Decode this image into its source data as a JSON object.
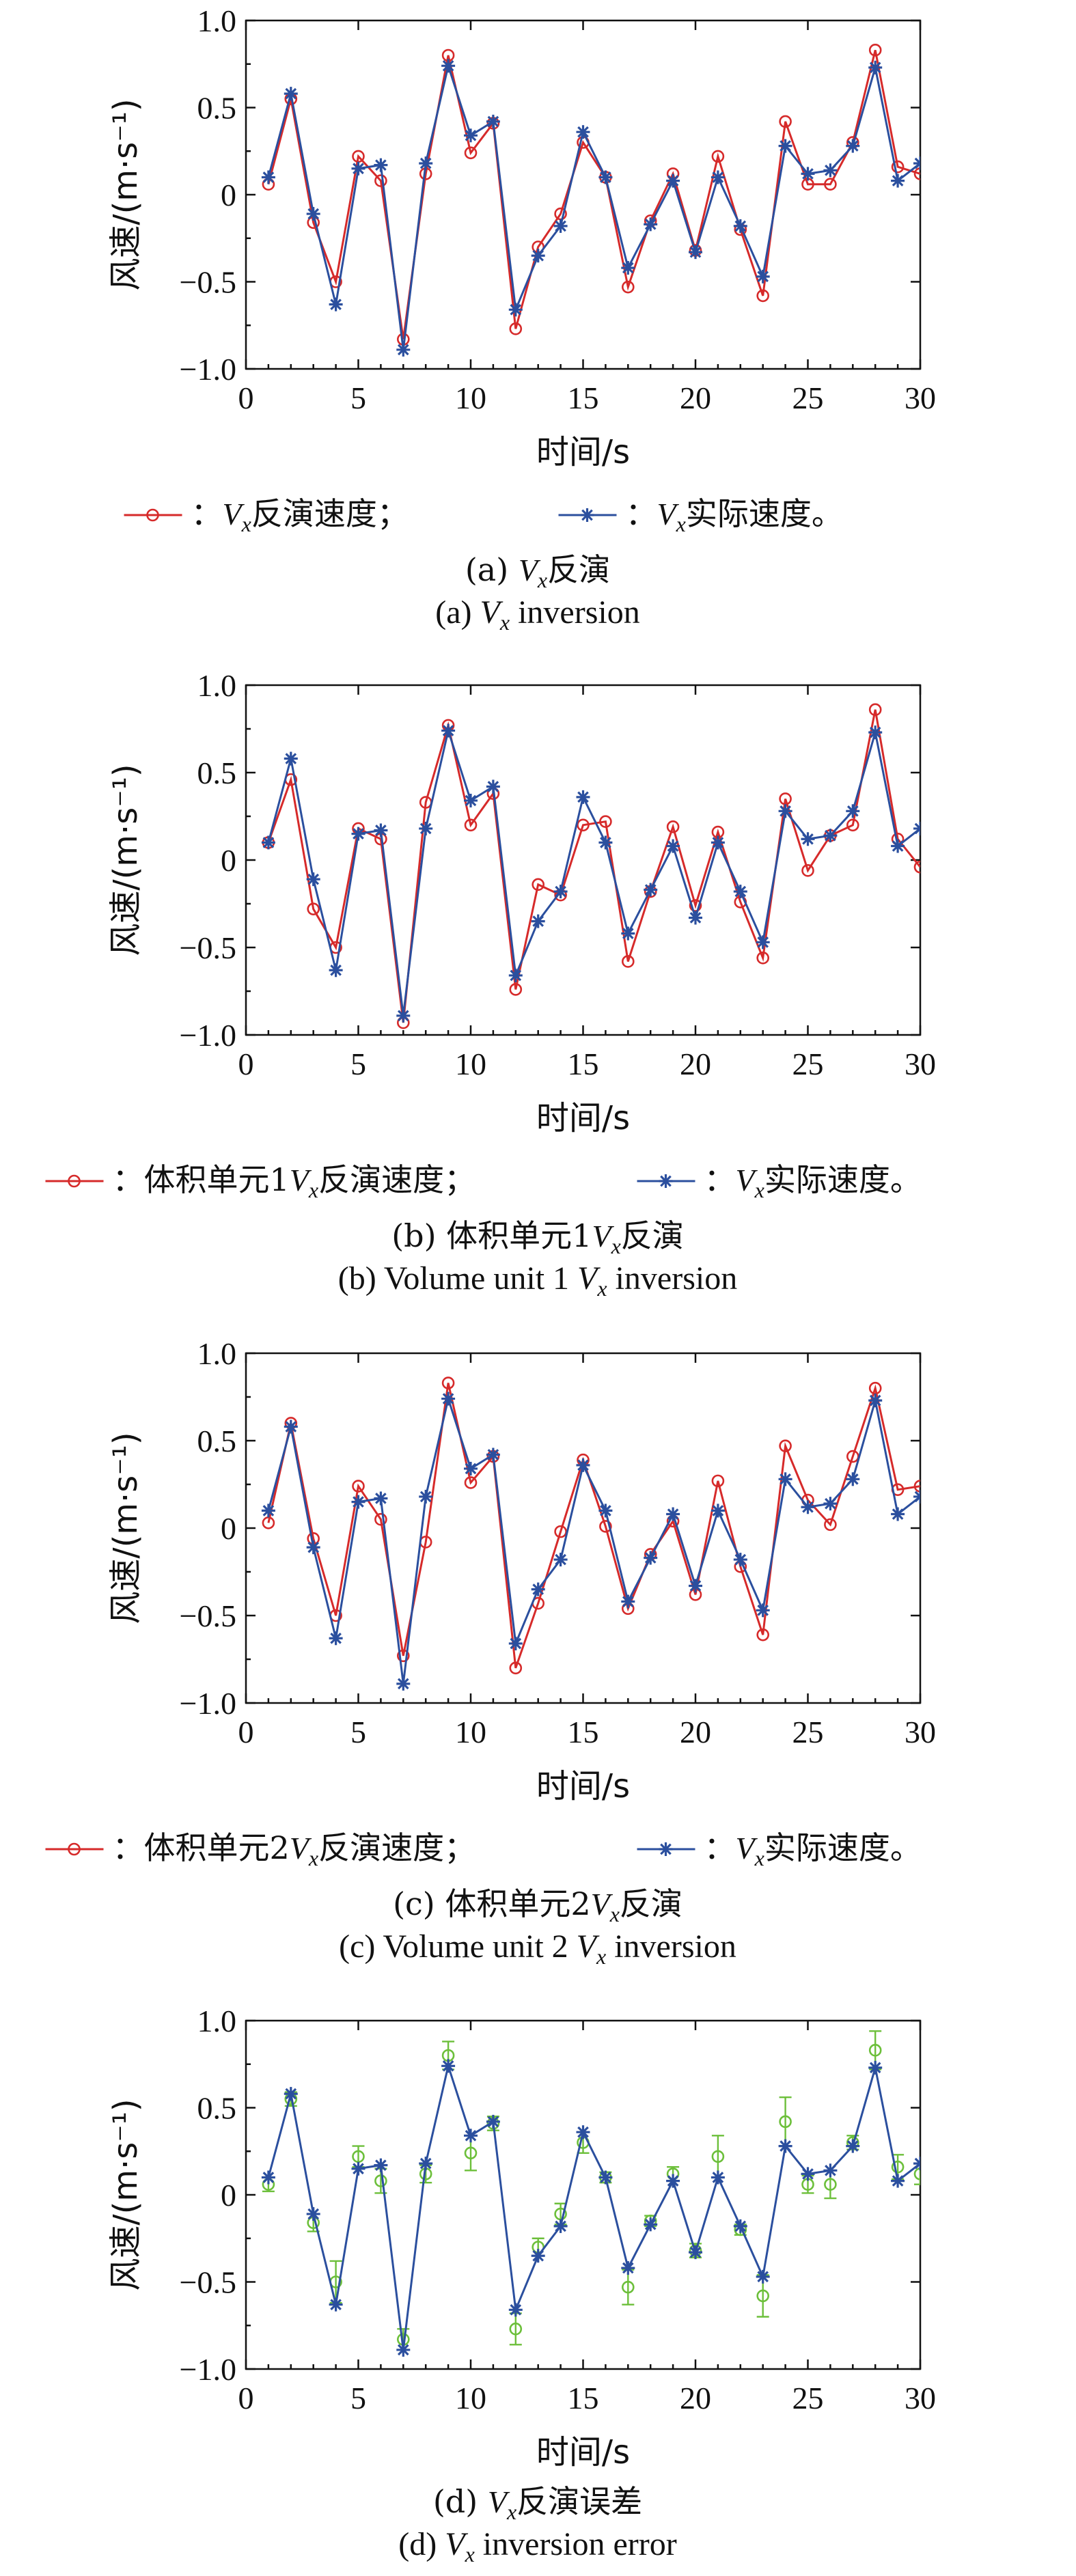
{
  "chart_data": [
    {
      "type": "line",
      "xlabel": "时间/s",
      "ylabel": "风速/(m·s⁻¹)",
      "xlim": [
        0,
        30
      ],
      "ylim": [
        -1.0,
        1.0
      ],
      "xticks": [
        "0",
        "5",
        "10",
        "15",
        "20",
        "25",
        "30"
      ],
      "yticks": [
        "-1.0",
        "-0.5",
        "0",
        "0.5",
        "1.0"
      ],
      "x": [
        1,
        2,
        3,
        4,
        5,
        6,
        7,
        8,
        9,
        10,
        11,
        12,
        13,
        14,
        15,
        16,
        17,
        18,
        19,
        20,
        21,
        22,
        23,
        24,
        25,
        26,
        27,
        28,
        29,
        30
      ],
      "series": [
        {
          "name": "Vx反演速度",
          "marker": "circle",
          "color": "#d62a2a",
          "values": [
            0.06,
            0.55,
            -0.16,
            -0.5,
            0.22,
            0.08,
            -0.83,
            0.12,
            0.8,
            0.24,
            0.41,
            -0.77,
            -0.3,
            -0.11,
            0.3,
            0.1,
            -0.53,
            -0.15,
            0.12,
            -0.32,
            0.22,
            -0.2,
            -0.58,
            0.42,
            0.06,
            0.06,
            0.3,
            0.83,
            0.16,
            0.12
          ]
        },
        {
          "name": "Vx实际速度",
          "marker": "star",
          "color": "#2b4f9e",
          "values": [
            0.1,
            0.58,
            -0.11,
            -0.63,
            0.15,
            0.17,
            -0.89,
            0.18,
            0.74,
            0.34,
            0.42,
            -0.66,
            -0.35,
            -0.18,
            0.36,
            0.1,
            -0.42,
            -0.17,
            0.08,
            -0.33,
            0.1,
            -0.18,
            -0.47,
            0.28,
            0.12,
            0.14,
            0.28,
            0.73,
            0.08,
            0.18
          ]
        }
      ],
      "legend": [
        {
          "prefix": "：",
          "var": "V",
          "sub": "x",
          "text": "反演速度；"
        },
        {
          "prefix": "：",
          "var": "V",
          "sub": "x",
          "text": "实际速度。"
        }
      ],
      "caption_zh": {
        "pre": "(a) ",
        "var": "V",
        "sub": "x",
        "post": "反演"
      },
      "caption_en": {
        "pre": "(a) ",
        "var": "V",
        "sub": "x",
        "post": " inversion"
      }
    },
    {
      "type": "line",
      "xlabel": "时间/s",
      "ylabel": "风速/(m·s⁻¹)",
      "xlim": [
        0,
        30
      ],
      "ylim": [
        -1.0,
        1.0
      ],
      "xticks": [
        "0",
        "5",
        "10",
        "15",
        "20",
        "25",
        "30"
      ],
      "yticks": [
        "-1.0",
        "-0.5",
        "0",
        "0.5",
        "1.0"
      ],
      "x": [
        1,
        2,
        3,
        4,
        5,
        6,
        7,
        8,
        9,
        10,
        11,
        12,
        13,
        14,
        15,
        16,
        17,
        18,
        19,
        20,
        21,
        22,
        23,
        24,
        25,
        26,
        27,
        28,
        29,
        30
      ],
      "series": [
        {
          "name": "体积单元1Vx反演速度",
          "marker": "circle",
          "color": "#d62a2a",
          "values": [
            0.1,
            0.46,
            -0.28,
            -0.5,
            0.18,
            0.12,
            -0.93,
            0.33,
            0.77,
            0.2,
            0.38,
            -0.74,
            -0.14,
            -0.2,
            0.2,
            0.22,
            -0.58,
            -0.18,
            0.19,
            -0.26,
            0.16,
            -0.24,
            -0.56,
            0.35,
            -0.06,
            0.14,
            0.2,
            0.86,
            0.12,
            -0.04
          ]
        },
        {
          "name": "Vx实际速度",
          "marker": "star",
          "color": "#2b4f9e",
          "values": [
            0.1,
            0.58,
            -0.11,
            -0.63,
            0.15,
            0.17,
            -0.89,
            0.18,
            0.74,
            0.34,
            0.42,
            -0.66,
            -0.35,
            -0.18,
            0.36,
            0.1,
            -0.42,
            -0.17,
            0.08,
            -0.33,
            0.1,
            -0.18,
            -0.47,
            0.28,
            0.12,
            0.14,
            0.28,
            0.73,
            0.08,
            0.18
          ]
        }
      ],
      "legend": [
        {
          "prefix": "：体积单元1",
          "var": "V",
          "sub": "x",
          "text": "反演速度；"
        },
        {
          "prefix": "：",
          "var": "V",
          "sub": "x",
          "text": "实际速度。"
        }
      ],
      "caption_zh": {
        "pre": "(b) 体积单元1",
        "var": "V",
        "sub": "x",
        "post": "反演"
      },
      "caption_en": {
        "pre": "(b) Volume unit 1 ",
        "var": "V",
        "sub": "x",
        "post": " inversion"
      }
    },
    {
      "type": "line",
      "xlabel": "时间/s",
      "ylabel": "风速/(m·s⁻¹)",
      "xlim": [
        0,
        30
      ],
      "ylim": [
        -1.0,
        1.0
      ],
      "xticks": [
        "0",
        "5",
        "10",
        "15",
        "20",
        "25",
        "30"
      ],
      "yticks": [
        "-1.0",
        "-0.5",
        "0",
        "0.5",
        "1.0"
      ],
      "x": [
        1,
        2,
        3,
        4,
        5,
        6,
        7,
        8,
        9,
        10,
        11,
        12,
        13,
        14,
        15,
        16,
        17,
        18,
        19,
        20,
        21,
        22,
        23,
        24,
        25,
        26,
        27,
        28,
        29,
        30
      ],
      "series": [
        {
          "name": "体积单元2Vx反演速度",
          "marker": "circle",
          "color": "#d62a2a",
          "values": [
            0.03,
            0.6,
            -0.06,
            -0.5,
            0.24,
            0.05,
            -0.73,
            -0.08,
            0.83,
            0.26,
            0.41,
            -0.8,
            -0.43,
            -0.02,
            0.39,
            0.01,
            -0.46,
            -0.15,
            0.04,
            -0.38,
            0.27,
            -0.22,
            -0.61,
            0.47,
            0.16,
            0.02,
            0.41,
            0.8,
            0.22,
            0.24
          ]
        },
        {
          "name": "Vx实际速度",
          "marker": "star",
          "color": "#2b4f9e",
          "values": [
            0.1,
            0.58,
            -0.11,
            -0.63,
            0.15,
            0.17,
            -0.89,
            0.18,
            0.74,
            0.34,
            0.42,
            -0.66,
            -0.35,
            -0.18,
            0.36,
            0.1,
            -0.42,
            -0.17,
            0.08,
            -0.33,
            0.1,
            -0.18,
            -0.47,
            0.28,
            0.12,
            0.14,
            0.28,
            0.73,
            0.08,
            0.18
          ]
        }
      ],
      "legend": [
        {
          "prefix": "：体积单元2",
          "var": "V",
          "sub": "x",
          "text": "反演速度；"
        },
        {
          "prefix": "：",
          "var": "V",
          "sub": "x",
          "text": "实际速度。"
        }
      ],
      "caption_zh": {
        "pre": "(c) 体积单元2",
        "var": "V",
        "sub": "x",
        "post": "反演"
      },
      "caption_en": {
        "pre": "(c) Volume unit 2 ",
        "var": "V",
        "sub": "x",
        "post": " inversion"
      }
    },
    {
      "type": "line",
      "xlabel": "时间/s",
      "ylabel": "风速/(m·s⁻¹)",
      "xlim": [
        0,
        30
      ],
      "ylim": [
        -1.0,
        1.0
      ],
      "xticks": [
        "0",
        "5",
        "10",
        "15",
        "20",
        "25",
        "30"
      ],
      "yticks": [
        "-1.0",
        "-0.5",
        "0",
        "0.5",
        "1.0"
      ],
      "x": [
        1,
        2,
        3,
        4,
        5,
        6,
        7,
        8,
        9,
        10,
        11,
        12,
        13,
        14,
        15,
        16,
        17,
        18,
        19,
        20,
        21,
        22,
        23,
        24,
        25,
        26,
        27,
        28,
        29,
        30
      ],
      "series": [
        {
          "name": "Vx反演速度",
          "marker": "circle",
          "color": "#6cbf3a",
          "line": false,
          "values": [
            0.06,
            0.55,
            -0.16,
            -0.5,
            0.22,
            0.08,
            -0.83,
            0.12,
            0.8,
            0.24,
            0.41,
            -0.77,
            -0.3,
            -0.11,
            0.3,
            0.1,
            -0.53,
            -0.15,
            0.12,
            -0.32,
            0.22,
            -0.2,
            -0.58,
            0.42,
            0.06,
            0.06,
            0.3,
            0.83,
            0.16,
            0.12
          ],
          "error": [
            0.04,
            0.04,
            0.05,
            0.12,
            0.06,
            0.07,
            0.06,
            0.05,
            0.08,
            0.1,
            0.04,
            0.09,
            0.05,
            0.06,
            0.06,
            0.03,
            0.1,
            0.03,
            0.04,
            0.04,
            0.12,
            0.03,
            0.12,
            0.14,
            0.05,
            0.08,
            0.04,
            0.11,
            0.07,
            0.06
          ]
        },
        {
          "name": "Vx实际速度",
          "marker": "star",
          "color": "#2b4f9e",
          "values": [
            0.1,
            0.58,
            -0.11,
            -0.63,
            0.15,
            0.17,
            -0.89,
            0.18,
            0.74,
            0.34,
            0.42,
            -0.66,
            -0.35,
            -0.18,
            0.36,
            0.1,
            -0.42,
            -0.17,
            0.08,
            -0.33,
            0.1,
            -0.18,
            -0.47,
            0.28,
            0.12,
            0.14,
            0.28,
            0.73,
            0.08,
            0.18
          ]
        }
      ],
      "legend": [],
      "caption_zh": {
        "pre": "(d) ",
        "var": "V",
        "sub": "x",
        "post": "反演误差"
      },
      "caption_en": {
        "pre": "(d) ",
        "var": "V",
        "sub": "x",
        "post": " inversion error"
      }
    }
  ]
}
